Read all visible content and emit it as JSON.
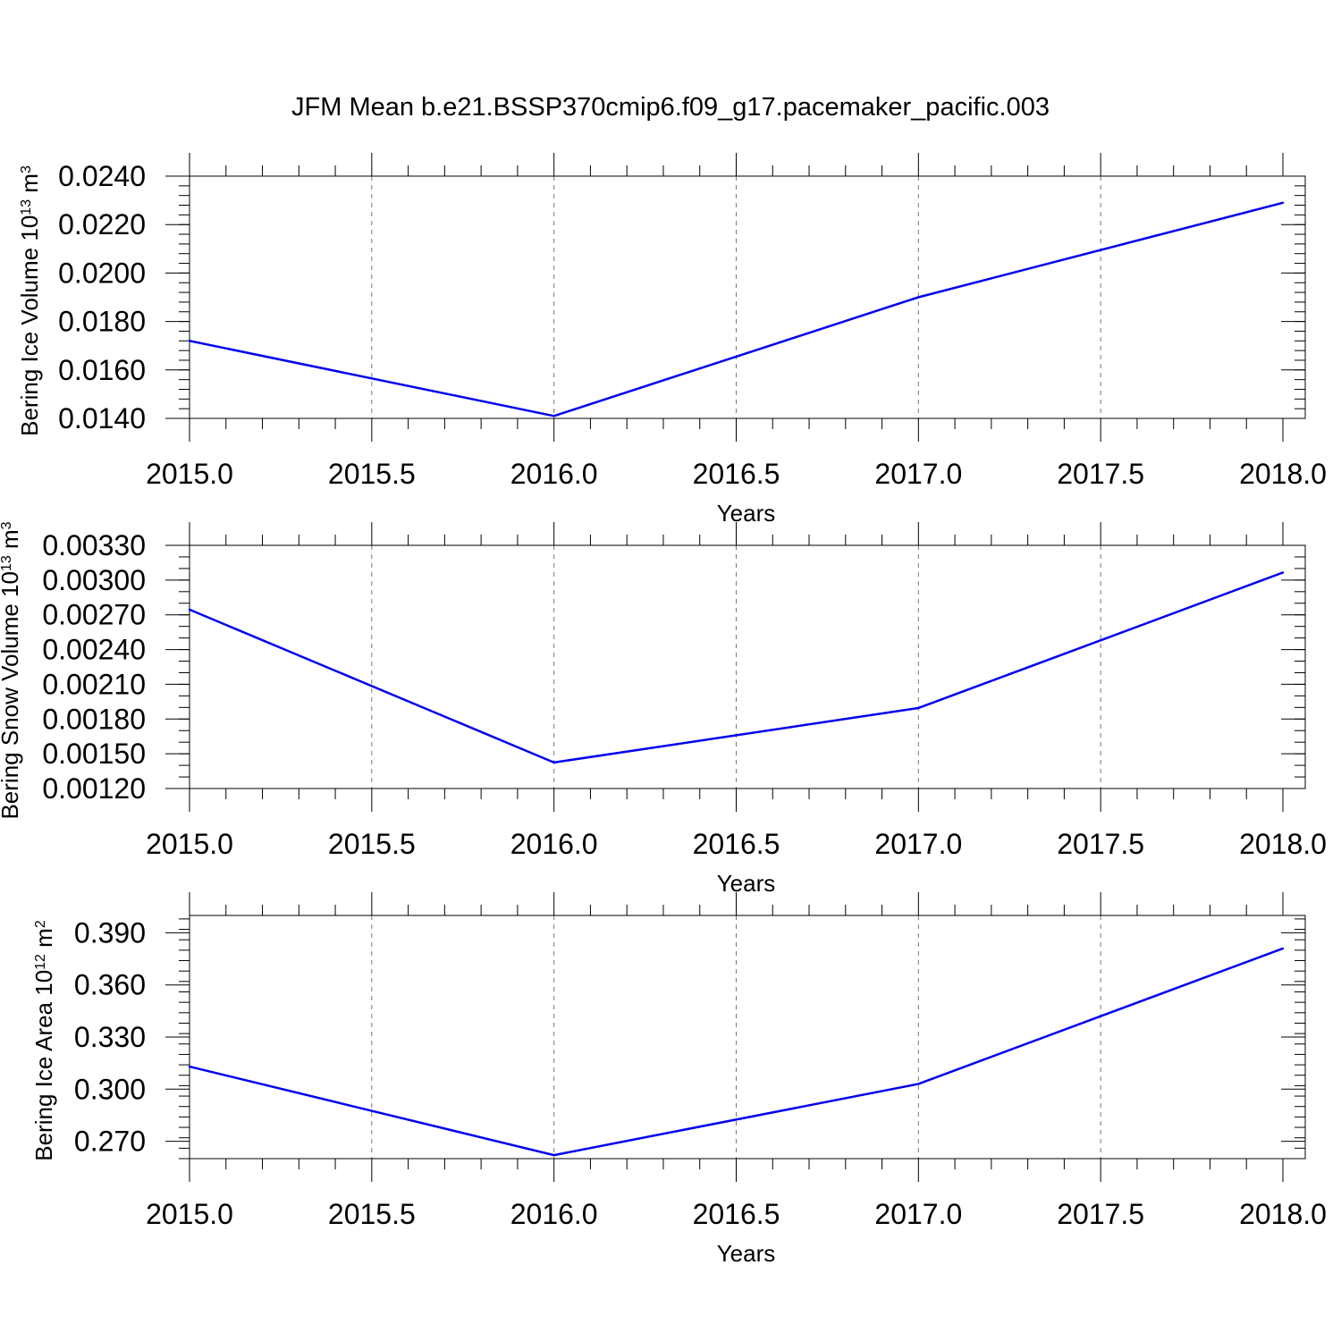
{
  "title": "JFM Mean b.e21.BSSP370cmip6.f09_g17.pacemaker_pacific.003",
  "chart_data": [
    {
      "type": "line",
      "title": "",
      "xlabel": "Years",
      "ylabel": "Bering Ice Volume 10",
      "ylabel_exp": "13",
      "ylabel_unit": " m",
      "ylabel_unit_exp": "3",
      "xlim": [
        2015.0,
        2018.0
      ],
      "ylim": [
        0.014,
        0.024
      ],
      "xticks": [
        2015.0,
        2015.5,
        2016.0,
        2016.5,
        2017.0,
        2017.5,
        2018.0
      ],
      "xtick_labels": [
        "2015.0",
        "2015.5",
        "2016.0",
        "2016.5",
        "2017.0",
        "2017.5",
        "2018.0"
      ],
      "yticks": [
        0.014,
        0.016,
        0.018,
        0.02,
        0.022,
        0.024
      ],
      "ytick_labels": [
        "0.0140",
        "0.0160",
        "0.0180",
        "0.0200",
        "0.0220",
        "0.0240"
      ],
      "minor_y_step": 0.0004,
      "grid": "vertical dashed",
      "series": [
        {
          "color": "#0000ee",
          "x": [
            2015,
            2016,
            2017,
            2018
          ],
          "y": [
            0.0172,
            0.0141,
            0.019,
            0.0229
          ]
        }
      ]
    },
    {
      "type": "line",
      "title": "",
      "xlabel": "Years",
      "ylabel": "Bering Snow Volume 10",
      "ylabel_exp": "13",
      "ylabel_unit": " m",
      "ylabel_unit_exp": "3",
      "xlim": [
        2015.0,
        2018.0
      ],
      "ylim": [
        0.0012,
        0.0033
      ],
      "xticks": [
        2015.0,
        2015.5,
        2016.0,
        2016.5,
        2017.0,
        2017.5,
        2018.0
      ],
      "xtick_labels": [
        "2015.0",
        "2015.5",
        "2016.0",
        "2016.5",
        "2017.0",
        "2017.5",
        "2018.0"
      ],
      "yticks": [
        0.0012,
        0.0015,
        0.0018,
        0.0021,
        0.0024,
        0.0027,
        0.003,
        0.0033
      ],
      "ytick_labels": [
        "0.00120",
        "0.00150",
        "0.00180",
        "0.00210",
        "0.00240",
        "0.00270",
        "0.00300",
        "0.00330"
      ],
      "minor_y_step": 0.0001,
      "grid": "vertical dashed",
      "series": [
        {
          "color": "#0000ee",
          "x": [
            2015,
            2016,
            2017,
            2018
          ],
          "y": [
            0.002745,
            0.001425,
            0.001895,
            0.003065
          ]
        }
      ]
    },
    {
      "type": "line",
      "title": "",
      "xlabel": "Years",
      "ylabel": "Bering Ice Area 10",
      "ylabel_exp": "12",
      "ylabel_unit": " m",
      "ylabel_unit_exp": "2",
      "xlim": [
        2015.0,
        2018.0
      ],
      "ylim": [
        0.26,
        0.4
      ],
      "xticks": [
        2015.0,
        2015.5,
        2016.0,
        2016.5,
        2017.0,
        2017.5,
        2018.0
      ],
      "xtick_labels": [
        "2015.0",
        "2015.5",
        "2016.0",
        "2016.5",
        "2017.0",
        "2017.5",
        "2018.0"
      ],
      "yticks": [
        0.27,
        0.3,
        0.33,
        0.36,
        0.39
      ],
      "ytick_labels": [
        "0.270",
        "0.300",
        "0.330",
        "0.360",
        "0.390"
      ],
      "minor_y_step": 0.006,
      "grid": "vertical dashed",
      "series": [
        {
          "color": "#0000ee",
          "x": [
            2015,
            2016,
            2017,
            2018
          ],
          "y": [
            0.313,
            0.262,
            0.303,
            0.381
          ]
        }
      ]
    }
  ]
}
